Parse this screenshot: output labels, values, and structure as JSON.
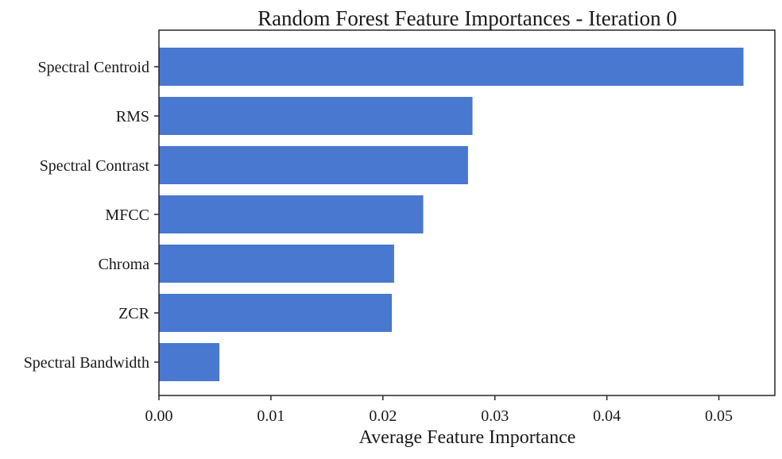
{
  "chart_data": {
    "type": "bar",
    "orientation": "horizontal",
    "title": "Random Forest Feature Importances - Iteration 0",
    "xlabel": "Average Feature Importance",
    "ylabel": "",
    "categories": [
      "Spectral Centroid",
      "RMS",
      "Spectral Contrast",
      "MFCC",
      "Chroma",
      "ZCR",
      "Spectral Bandwidth"
    ],
    "values": [
      0.0522,
      0.028,
      0.0276,
      0.0236,
      0.021,
      0.0208,
      0.0054
    ],
    "xlim": [
      0.0,
      0.055
    ],
    "xticks": [
      0.0,
      0.01,
      0.02,
      0.03,
      0.04,
      0.05
    ],
    "xtick_labels": [
      "0.00",
      "0.01",
      "0.02",
      "0.03",
      "0.04",
      "0.05"
    ],
    "grid": false,
    "bar_color": "#4878CF",
    "axis_color": "#262626"
  }
}
